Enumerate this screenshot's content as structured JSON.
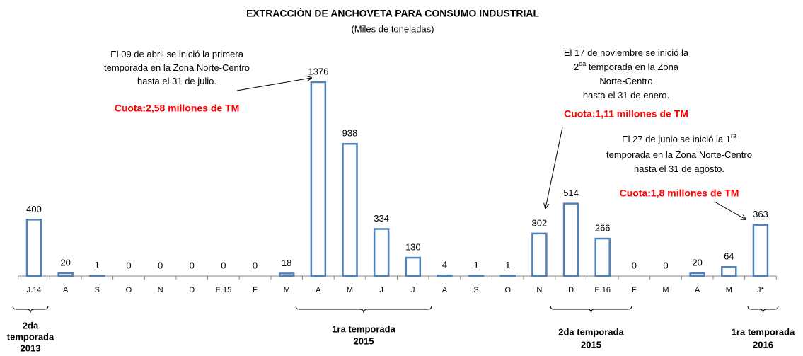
{
  "chart_data": {
    "type": "bar",
    "title": "EXTRACCIÓN DE ANCHOVETA PARA CONSUMO INDUSTRIAL",
    "subtitle": "(Miles de toneladas)",
    "categories": [
      "J.14",
      "A",
      "S",
      "O",
      "N",
      "D",
      "E.15",
      "F",
      "M",
      "A",
      "M",
      "J",
      "J",
      "A",
      "S",
      "O",
      "N",
      "D",
      "E.16",
      "F",
      "M",
      "A",
      "M",
      "J*"
    ],
    "values": [
      400,
      20,
      1,
      0,
      0,
      0,
      0,
      0,
      18,
      1376,
      938,
      334,
      130,
      4,
      1,
      1,
      302,
      514,
      266,
      0,
      0,
      20,
      64,
      363
    ],
    "color": "#4f81bd",
    "quota_color": "#ff0000",
    "annotations": [
      {
        "lines": [
          {
            "text": "El 09 de abril se inició la primera"
          },
          {
            "text": "temporada en la Zona  Norte-Centro"
          },
          {
            "text": "hasta el 31 de julio."
          }
        ],
        "quota": "Cuota:2,58 millones de TM"
      },
      {
        "lines": [
          {
            "text": "El 17 de noviembre se inició la"
          },
          {
            "text": "2",
            "sup": "da",
            "rest": " temporada en la Zona"
          },
          {
            "text": "Norte-Centro"
          },
          {
            "text": "hasta el 31 de enero."
          }
        ],
        "quota": "Cuota:1,11 millones de TM"
      },
      {
        "lines": [
          {
            "text": "El 27 de junio se inició la 1",
            "sup": "ra"
          },
          {
            "text": "temporada en la Zona  Norte-Centro"
          },
          {
            "text": "hasta el 31 de agosto."
          }
        ],
        "quota": "Cuota:1,8 millones de TM"
      }
    ],
    "seasons": [
      {
        "lines": [
          "2da",
          "temporada",
          "2013"
        ]
      },
      {
        "lines": [
          "1ra temporada",
          "2015"
        ]
      },
      {
        "lines": [
          "2da temporada",
          "2015"
        ]
      },
      {
        "lines": [
          "1ra temporada",
          "2016"
        ]
      }
    ]
  }
}
